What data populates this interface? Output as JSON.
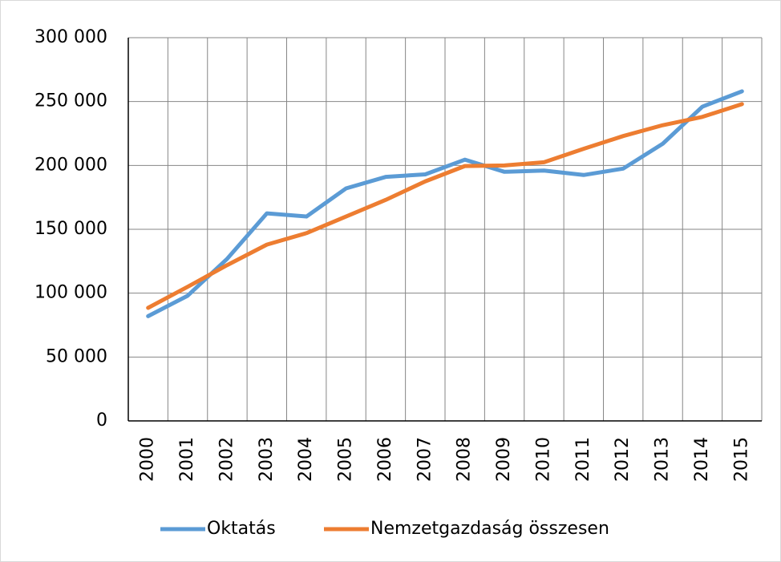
{
  "chart_data": {
    "type": "line",
    "categories": [
      "2000",
      "2001",
      "2002",
      "2003",
      "2004",
      "2005",
      "2006",
      "2007",
      "2008",
      "2009",
      "2010",
      "2011",
      "2012",
      "2013",
      "2014",
      "2015"
    ],
    "series": [
      {
        "name": "Oktatás",
        "color": "#5b9bd5",
        "values": [
          82000,
          98000,
          127000,
          162500,
          160000,
          182000,
          191000,
          193000,
          204500,
          195000,
          196000,
          192500,
          197500,
          217000,
          246000,
          258000
        ]
      },
      {
        "name": "Nemzetgazdaság összesen",
        "color": "#ed7d31",
        "values": [
          88500,
          105000,
          122000,
          138000,
          147000,
          160000,
          173000,
          187500,
          199500,
          200000,
          202500,
          213000,
          223000,
          231500,
          238000,
          248000
        ]
      }
    ],
    "ylim": [
      0,
      300000
    ],
    "yticks": [
      0,
      {
        "value": 50000,
        "label": "50 000"
      },
      {
        "value": 100000,
        "label": "100 000"
      },
      {
        "value": 150000,
        "label": "150 000"
      },
      {
        "value": 200000,
        "label": "200 000"
      },
      {
        "value": 250000,
        "label": "250 000"
      },
      {
        "value": 300000,
        "label": "300 000"
      }
    ],
    "grid": true,
    "legend": "bottom"
  }
}
